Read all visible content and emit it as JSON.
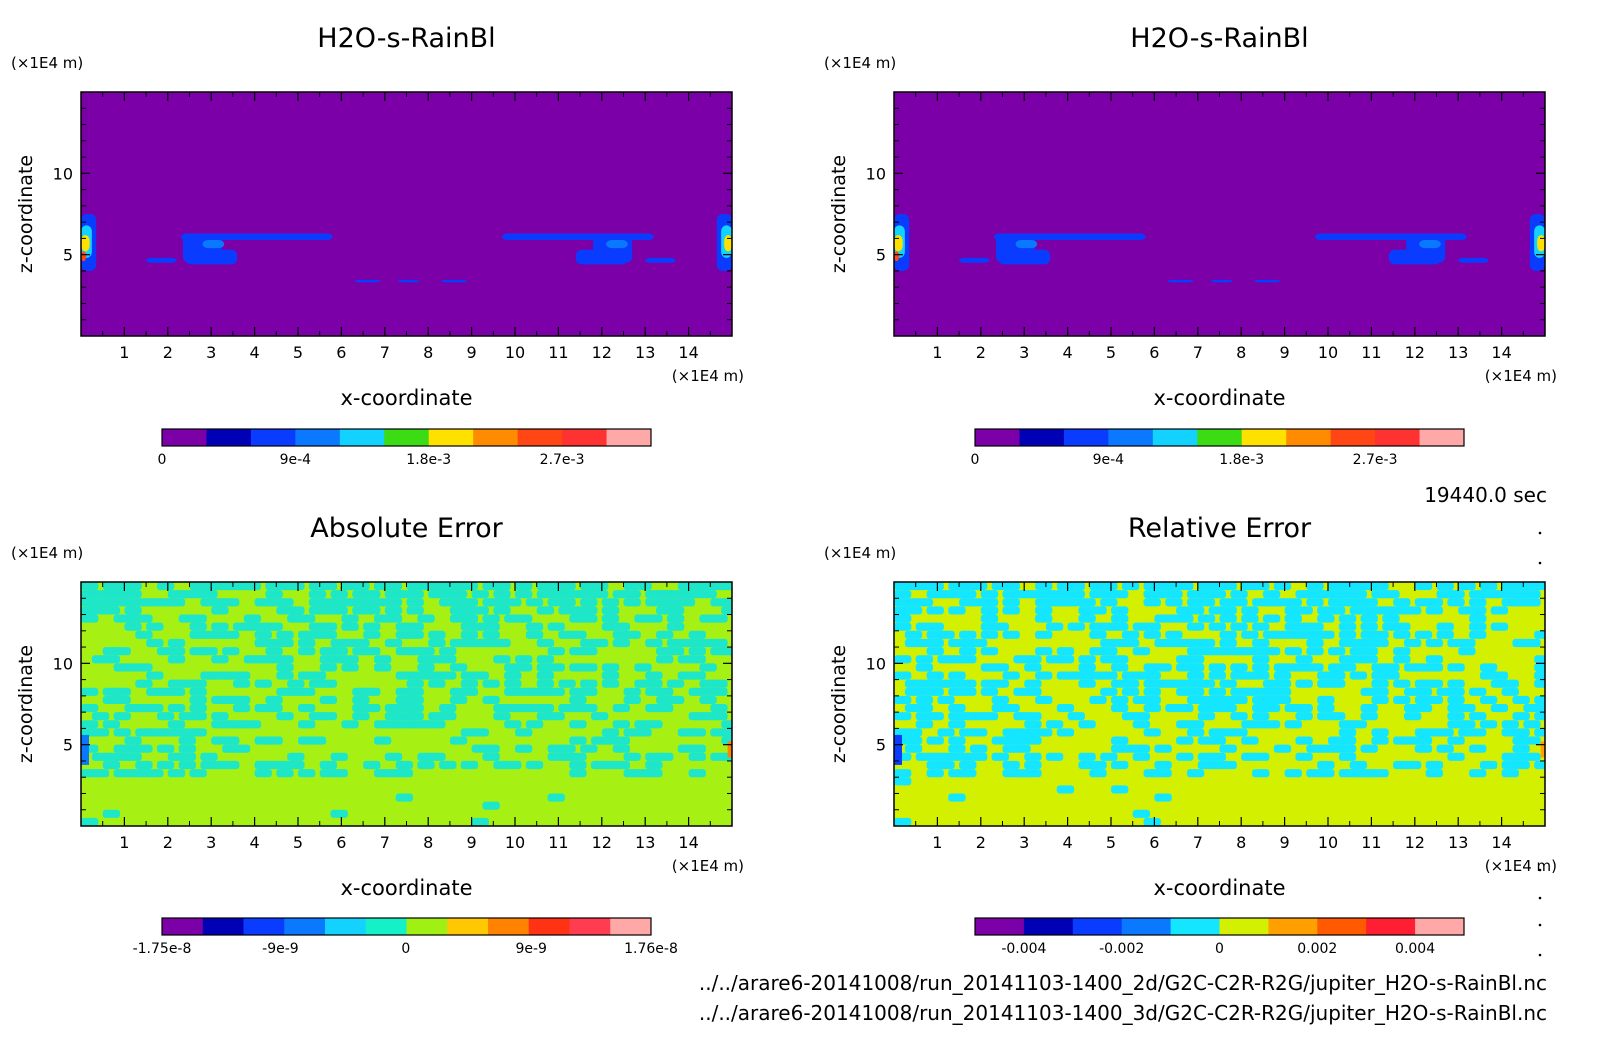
{
  "time_label": "19440.0 sec",
  "file_paths": [
    "../../arare6-20141008/run_20141103-1400_2d/G2C-C2R-R2G/jupiter_H2O-s-RainBl.nc",
    "../../arare6-20141008/run_20141103-1400_3d/G2C-C2R-R2G/jupiter_H2O-s-RainBl.nc"
  ],
  "chart_data": [
    {
      "type": "heatmap",
      "title": "H2O-s-RainBl",
      "xlabel": "x-coordinate",
      "ylabel": "z-coordinate",
      "x_unit": "(×1E4 m)",
      "y_unit": "(×1E4 m)",
      "xlim": [
        0,
        15
      ],
      "ylim": [
        0,
        15
      ],
      "x_ticks": [
        "1",
        "2",
        "3",
        "4",
        "5",
        "6",
        "7",
        "8",
        "9",
        "10",
        "11",
        "12",
        "13",
        "14"
      ],
      "y_ticks": [
        "5",
        "10"
      ],
      "colorbar": {
        "colors": [
          "#7b00a8",
          "#0000b4",
          "#0a3cff",
          "#0a78ff",
          "#14d2ff",
          "#3cdc14",
          "#ffe100",
          "#ff8c00",
          "#ff4614",
          "#ff3232",
          "#ffa8a8"
        ],
        "tick_labels": [
          "0",
          "9e-4",
          "1.8e-3",
          "2.7e-3"
        ],
        "tick_values": [
          0,
          0.0009,
          0.0018,
          0.0027
        ],
        "range": [
          0,
          0.0033
        ]
      },
      "background_level": 0
    },
    {
      "type": "heatmap",
      "title": "H2O-s-RainBl",
      "xlabel": "x-coordinate",
      "ylabel": "z-coordinate",
      "x_unit": "(×1E4 m)",
      "y_unit": "(×1E4 m)",
      "xlim": [
        0,
        15
      ],
      "ylim": [
        0,
        15
      ],
      "x_ticks": [
        "1",
        "2",
        "3",
        "4",
        "5",
        "6",
        "7",
        "8",
        "9",
        "10",
        "11",
        "12",
        "13",
        "14"
      ],
      "y_ticks": [
        "5",
        "10"
      ],
      "colorbar": {
        "colors": [
          "#7b00a8",
          "#0000b4",
          "#0a3cff",
          "#0a78ff",
          "#14d2ff",
          "#3cdc14",
          "#ffe100",
          "#ff8c00",
          "#ff4614",
          "#ff3232",
          "#ffa8a8"
        ],
        "tick_labels": [
          "0",
          "9e-4",
          "1.8e-3",
          "2.7e-3"
        ],
        "tick_values": [
          0,
          0.0009,
          0.0018,
          0.0027
        ],
        "range": [
          0,
          0.0033
        ]
      },
      "background_level": 0
    },
    {
      "type": "heatmap",
      "title": "Absolute Error",
      "xlabel": "x-coordinate",
      "ylabel": "z-coordinate",
      "x_unit": "(×1E4 m)",
      "y_unit": "(×1E4 m)",
      "xlim": [
        0,
        15
      ],
      "ylim": [
        0,
        15
      ],
      "x_ticks": [
        "1",
        "2",
        "3",
        "4",
        "5",
        "6",
        "7",
        "8",
        "9",
        "10",
        "11",
        "12",
        "13",
        "14"
      ],
      "y_ticks": [
        "5",
        "10"
      ],
      "colorbar": {
        "colors": [
          "#7b00a8",
          "#0000b4",
          "#0a3cff",
          "#0a78ff",
          "#14d2ff",
          "#14f0c8",
          "#a0f014",
          "#ffc800",
          "#ff8200",
          "#ff3214",
          "#ff3c50",
          "#ffa8a8"
        ],
        "tick_labels": [
          "-1.75e-8",
          "-9e-9",
          "0",
          "9e-9",
          "1.76e-8"
        ],
        "tick_values": [
          -1.75e-08,
          -9e-09,
          0,
          9e-09,
          1.76e-08
        ],
        "range": [
          -1.75e-08,
          1.76e-08
        ]
      },
      "field_colors": [
        "#a6f014",
        "#1ee6c8"
      ]
    },
    {
      "type": "heatmap",
      "title": "Relative Error",
      "xlabel": "x-coordinate",
      "ylabel": "z-coordinate",
      "x_unit": "(×1E4 m)",
      "y_unit": "(×1E4 m)",
      "xlim": [
        0,
        15
      ],
      "ylim": [
        0,
        15
      ],
      "x_ticks": [
        "1",
        "2",
        "3",
        "4",
        "5",
        "6",
        "7",
        "8",
        "9",
        "10",
        "11",
        "12",
        "13",
        "14"
      ],
      "y_ticks": [
        "5",
        "10"
      ],
      "colorbar": {
        "colors": [
          "#7b00a8",
          "#0000b4",
          "#0a3cff",
          "#0a78ff",
          "#14e6ff",
          "#d2f000",
          "#ffa000",
          "#ff5a00",
          "#ff1e32",
          "#ffa8a8"
        ],
        "tick_labels": [
          "-0.004",
          "-0.002",
          "0",
          "0.002",
          "0.004"
        ],
        "tick_values": [
          -0.004,
          -0.002,
          0,
          0.002,
          0.004
        ],
        "range": [
          -0.005,
          0.005
        ]
      },
      "field_colors": [
        "#d2f000",
        "#14e6ff"
      ]
    }
  ]
}
